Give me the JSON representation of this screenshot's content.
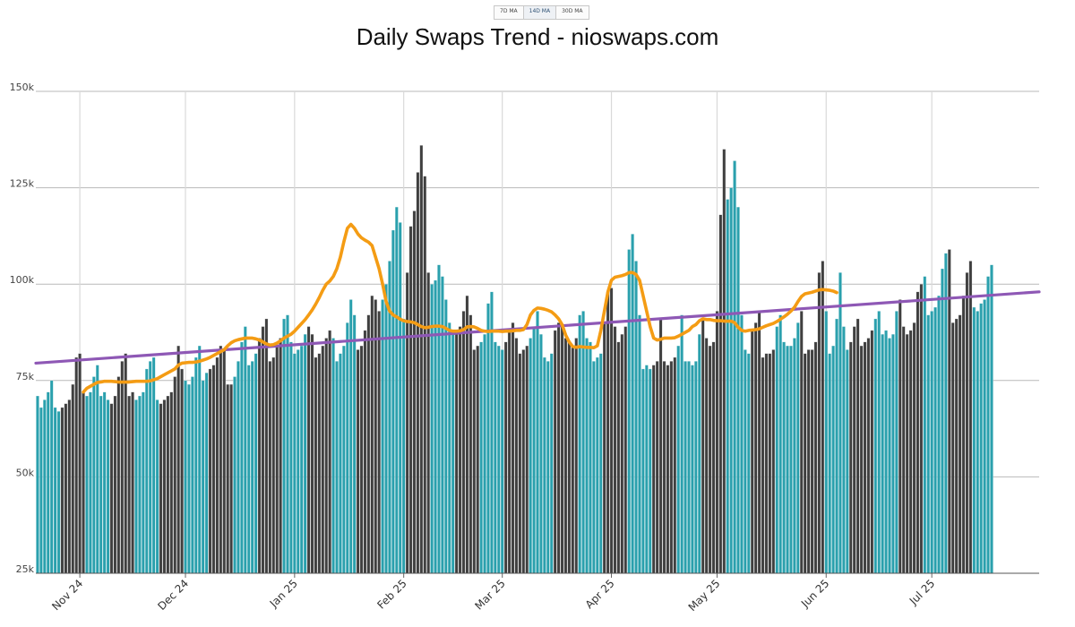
{
  "ma_buttons": [
    {
      "label": "7D MA",
      "active": false
    },
    {
      "label": "14D MA",
      "active": true
    },
    {
      "label": "30D MA",
      "active": false
    }
  ],
  "colors": {
    "month_alt_a": "#2aa0ad",
    "month_alt_b": "#3f3f3f",
    "moving_average": "#f49c14",
    "trendline": "#8e58b5",
    "gridline": "#cccccc"
  },
  "chart_data": {
    "type": "bar",
    "title": "Daily Swaps Trend - nioswaps.com",
    "xlabel": "",
    "ylabel": "",
    "x_range": [
      "2024-10-20",
      "2025-07-31"
    ],
    "ylim": [
      25000,
      150000
    ],
    "y_ticks": [
      {
        "value": 25000,
        "label": "25k"
      },
      {
        "value": 50000,
        "label": "50k"
      },
      {
        "value": 75000,
        "label": "75k"
      },
      {
        "value": 100000,
        "label": "100k"
      },
      {
        "value": 125000,
        "label": "125k"
      },
      {
        "value": 150000,
        "label": "150k"
      }
    ],
    "x_ticks": [
      {
        "date": "2024-11-01",
        "label": "Nov 24"
      },
      {
        "date": "2024-12-01",
        "label": "Dec 24"
      },
      {
        "date": "2025-01-01",
        "label": "Jan 25"
      },
      {
        "date": "2025-02-01",
        "label": "Feb 25"
      },
      {
        "date": "2025-03-01",
        "label": "Mar 25"
      },
      {
        "date": "2025-04-01",
        "label": "Apr 25"
      },
      {
        "date": "2025-05-01",
        "label": "May 25"
      },
      {
        "date": "2025-06-01",
        "label": "Jun 25"
      },
      {
        "date": "2025-07-01",
        "label": "Jul 25"
      }
    ],
    "grid": true,
    "bar_color_rule": "alternating color per week",
    "series": [
      {
        "type": "bar",
        "start_date": "2024-10-20",
        "interval": "daily",
        "values": [
          71000,
          68000,
          70000,
          72000,
          75000,
          68000,
          67000,
          68000,
          69000,
          70000,
          74000,
          81000,
          82000,
          72000,
          71000,
          72000,
          76000,
          79000,
          71000,
          72000,
          70000,
          69000,
          71000,
          76000,
          80000,
          82000,
          71000,
          72000,
          70000,
          71000,
          72000,
          78000,
          80000,
          81000,
          70000,
          69000,
          70000,
          71000,
          72000,
          76000,
          84000,
          78000,
          75000,
          74000,
          76000,
          81000,
          84000,
          75000,
          77000,
          78000,
          79000,
          81000,
          84000,
          83000,
          74000,
          74000,
          76000,
          80000,
          85000,
          89000,
          79000,
          80000,
          82000,
          86000,
          89000,
          91000,
          80000,
          81000,
          84000,
          86000,
          91000,
          92000,
          85000,
          82000,
          83000,
          84000,
          87000,
          89000,
          87000,
          81000,
          82000,
          84000,
          86000,
          88000,
          86000,
          80000,
          82000,
          84000,
          90000,
          96000,
          92000,
          83000,
          84000,
          88000,
          92000,
          97000,
          96000,
          93000,
          96000,
          100000,
          106000,
          114000,
          120000,
          116000,
          91000,
          103000,
          115000,
          119000,
          129000,
          136000,
          128000,
          103000,
          100000,
          101000,
          105000,
          102000,
          96000,
          90000,
          87000,
          88000,
          89000,
          93000,
          97000,
          92000,
          83000,
          84000,
          85000,
          87000,
          95000,
          98000,
          85000,
          84000,
          83000,
          85000,
          88000,
          90000,
          86000,
          82000,
          83000,
          84000,
          86000,
          89000,
          93000,
          87000,
          81000,
          80000,
          82000,
          88000,
          90000,
          89000,
          86000,
          85000,
          84000,
          86000,
          92000,
          93000,
          86000,
          85000,
          80000,
          81000,
          82000,
          90000,
          98000,
          99000,
          89000,
          85000,
          87000,
          89000,
          109000,
          113000,
          106000,
          92000,
          78000,
          79000,
          78000,
          79000,
          80000,
          91000,
          80000,
          79000,
          80000,
          81000,
          84000,
          92000,
          80000,
          80000,
          79000,
          80000,
          87000,
          91000,
          86000,
          84000,
          85000,
          93000,
          118000,
          135000,
          122000,
          125000,
          132000,
          120000,
          92000,
          83000,
          82000,
          88000,
          90000,
          93000,
          81000,
          82000,
          82000,
          83000,
          89000,
          92000,
          85000,
          84000,
          84000,
          86000,
          90000,
          93000,
          82000,
          83000,
          83000,
          85000,
          103000,
          106000,
          93000,
          82000,
          84000,
          91000,
          103000,
          89000,
          83000,
          85000,
          89000,
          91000,
          84000,
          85000,
          86000,
          88000,
          91000,
          93000,
          87000,
          88000,
          86000,
          87000,
          93000,
          96000,
          89000,
          87000,
          88000,
          90000,
          98000,
          100000,
          102000,
          92000,
          93000,
          94000,
          97000,
          104000,
          108000,
          109000,
          90000,
          91000,
          92000,
          97000,
          103000,
          106000,
          94000,
          93000,
          95000,
          96000,
          102000,
          105000
        ]
      },
      {
        "name": "14D MA",
        "type": "line",
        "start_date": "2024-11-02",
        "interval": "daily",
        "values": [
          72000,
          73000,
          73500,
          74000,
          74500,
          74600,
          74800,
          74800,
          74800,
          74700,
          74600,
          74600,
          74600,
          74600,
          74700,
          74800,
          74800,
          74800,
          74800,
          74900,
          75200,
          75500,
          76000,
          76500,
          77000,
          77500,
          78000,
          79000,
          79500,
          79600,
          79700,
          79700,
          79800,
          80000,
          80300,
          80600,
          81000,
          81500,
          82000,
          82500,
          83000,
          84000,
          84800,
          85300,
          85600,
          85800,
          86000,
          86000,
          86000,
          85800,
          85500,
          85000,
          84500,
          84200,
          84300,
          84700,
          85300,
          86000,
          86500,
          87000,
          87800,
          88800,
          89800,
          90800,
          92000,
          93300,
          94800,
          96500,
          98400,
          100000,
          100800,
          102000,
          104000,
          107000,
          111000,
          114500,
          115500,
          114500,
          113000,
          112000,
          111400,
          110900,
          110000,
          107000,
          104000,
          100000,
          95500,
          93000,
          92000,
          91500,
          90900,
          90500,
          90300,
          90200,
          90000,
          89500,
          89000,
          88700,
          88800,
          89000,
          89100,
          89100,
          89000,
          88500,
          88000,
          87800,
          87800,
          87900,
          88200,
          88900,
          89000,
          88900,
          88500,
          88000,
          87800,
          87700,
          87800,
          87800,
          87800,
          87700,
          87800,
          87800,
          87900,
          88000,
          88000,
          88200,
          89500,
          92000,
          93200,
          93800,
          93700,
          93500,
          93200,
          92800,
          92000,
          91000,
          89500,
          86800,
          85000,
          83800,
          83600,
          83800,
          83700,
          83600,
          83600,
          83500,
          84000,
          88000,
          93000,
          98000,
          101000,
          101800,
          102000,
          102200,
          102500,
          103000,
          103000,
          102500,
          101000,
          97000,
          93000,
          89000,
          86000,
          85500,
          85700,
          86000,
          86000,
          86000,
          86100,
          86500,
          87000,
          87500,
          88000,
          89000,
          89500,
          90500,
          91000,
          90800,
          90800,
          90600,
          90500,
          90500,
          90400,
          90400,
          90400,
          90000,
          88800,
          88000,
          87800,
          88000,
          88100,
          88200,
          88400,
          88800,
          89200,
          89500,
          89800,
          90300,
          90900,
          91500,
          92200,
          93000,
          94000,
          95500,
          96800,
          97500,
          97700,
          97900,
          98200,
          98500,
          98600,
          98500,
          98400,
          98200,
          97800
        ]
      },
      {
        "type": "line",
        "start_date": "2024-10-20",
        "values": [
          79500,
          98000
        ],
        "end_date": "2025-07-31"
      }
    ]
  }
}
